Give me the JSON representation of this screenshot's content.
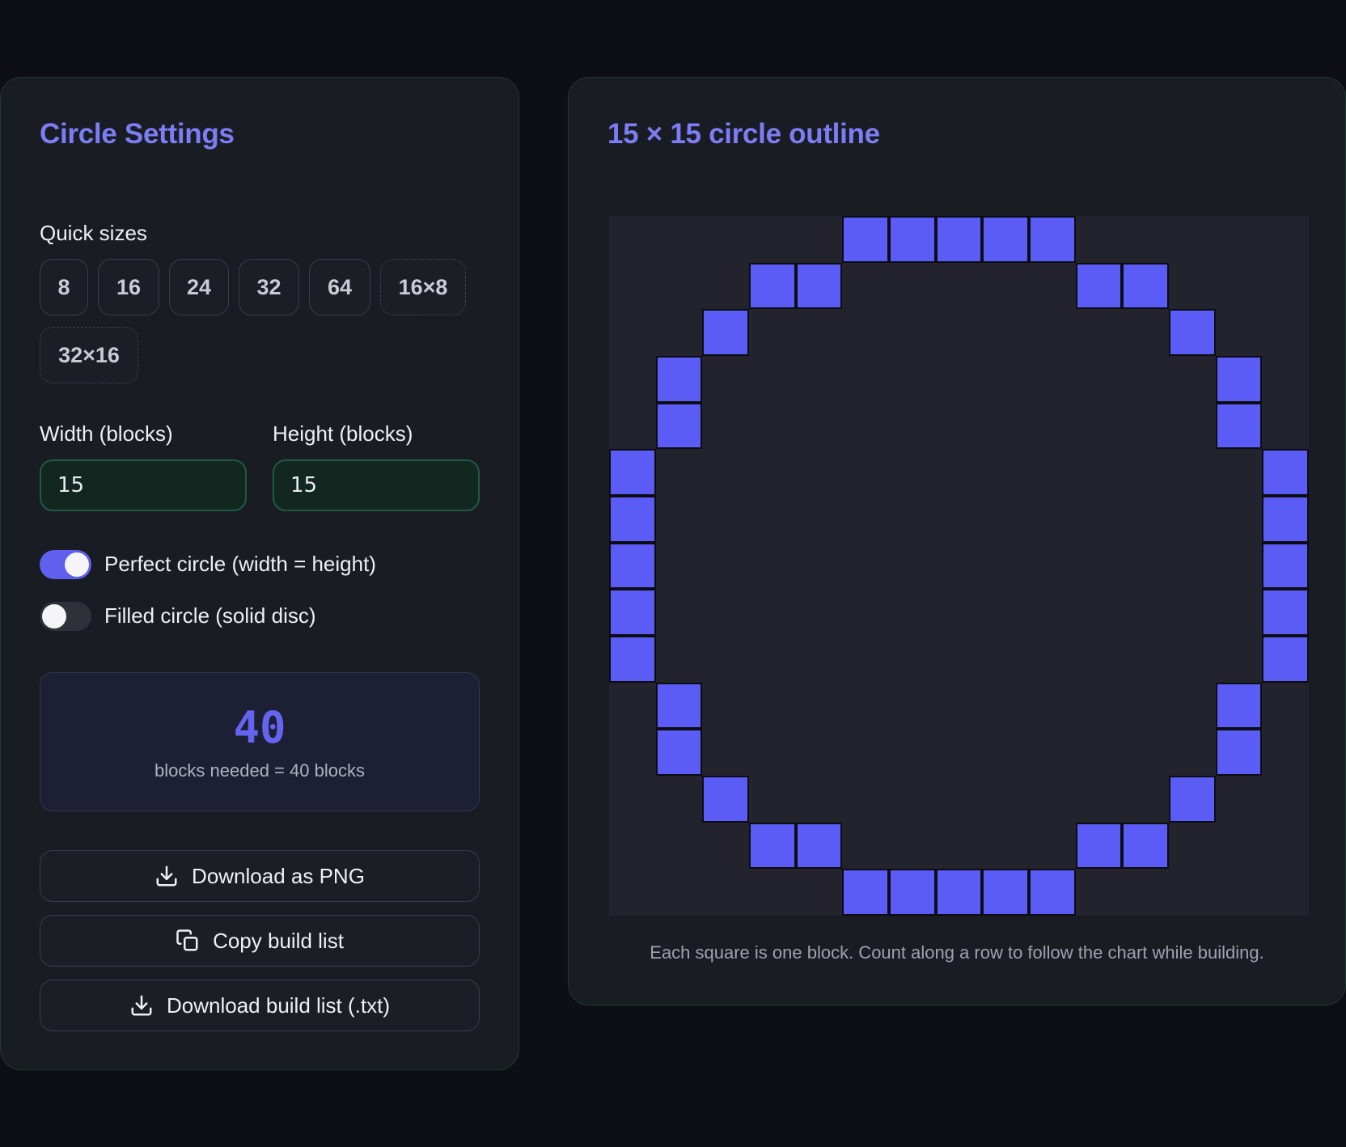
{
  "settings": {
    "title": "Circle Settings",
    "quick_sizes_label": "Quick sizes",
    "quick_sizes": [
      "8",
      "16",
      "24",
      "32",
      "64",
      "16×8",
      "32×16"
    ],
    "width_label": "Width (blocks)",
    "height_label": "Height (blocks)",
    "width_value": "15",
    "height_value": "15",
    "perfect_circle_label": "Perfect circle (width = height)",
    "perfect_circle_on": true,
    "filled_circle_label": "Filled circle (solid disc)",
    "filled_circle_on": false,
    "block_count": "40",
    "block_count_caption": "blocks needed = 40 blocks",
    "download_png_label": "Download as PNG",
    "copy_list_label": "Copy build list",
    "download_txt_label": "Download build list (.txt)"
  },
  "preview": {
    "title": "15 × 15 circle outline",
    "caption": "Each square is one block. Count along a row to follow the chart while building.",
    "grid_size": 15,
    "rows": [
      [
        5,
        6,
        7,
        8,
        9
      ],
      [
        3,
        4,
        10,
        11
      ],
      [
        2,
        12
      ],
      [
        1,
        13
      ],
      [
        1,
        13
      ],
      [
        0,
        14
      ],
      [
        0,
        14
      ],
      [
        0,
        14
      ],
      [
        0,
        14
      ],
      [
        0,
        14
      ],
      [
        1,
        13
      ],
      [
        1,
        13
      ],
      [
        2,
        12
      ],
      [
        3,
        4,
        10,
        11
      ],
      [
        5,
        6,
        7,
        8,
        9
      ]
    ]
  },
  "colors": {
    "accent": "#6060ee",
    "block": "#5b5cf6",
    "panel_border": "#1e3a30"
  },
  "icons": {
    "download": "download-icon",
    "copy": "copy-icon"
  }
}
